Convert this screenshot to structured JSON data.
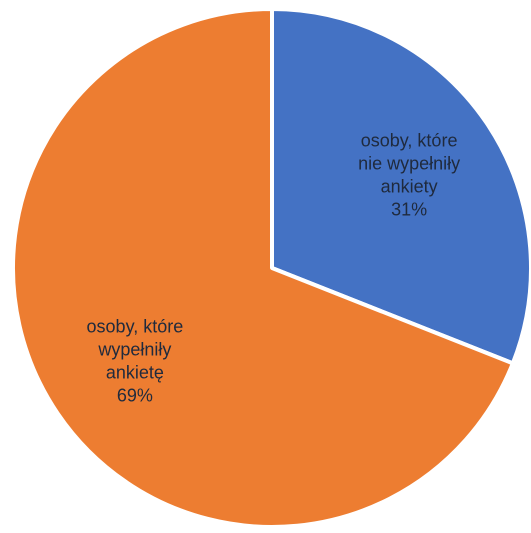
{
  "chart_data": {
    "type": "pie",
    "title": "",
    "slices": [
      {
        "label_lines": [
          "osoby, które",
          "nie wypełniły",
          "ankiety"
        ],
        "percent_label": "31%",
        "value": 31,
        "color": "#4472C4"
      },
      {
        "label_lines": [
          "osoby, które",
          "wypełniły",
          "ankietę"
        ],
        "percent_label": "69%",
        "value": 69,
        "color": "#ED7D31"
      }
    ],
    "start_angle": "12 o'clock",
    "direction": "clockwise",
    "legend": "none",
    "label_color": "#1f2a3d",
    "slice_border_color": "#ffffff"
  }
}
